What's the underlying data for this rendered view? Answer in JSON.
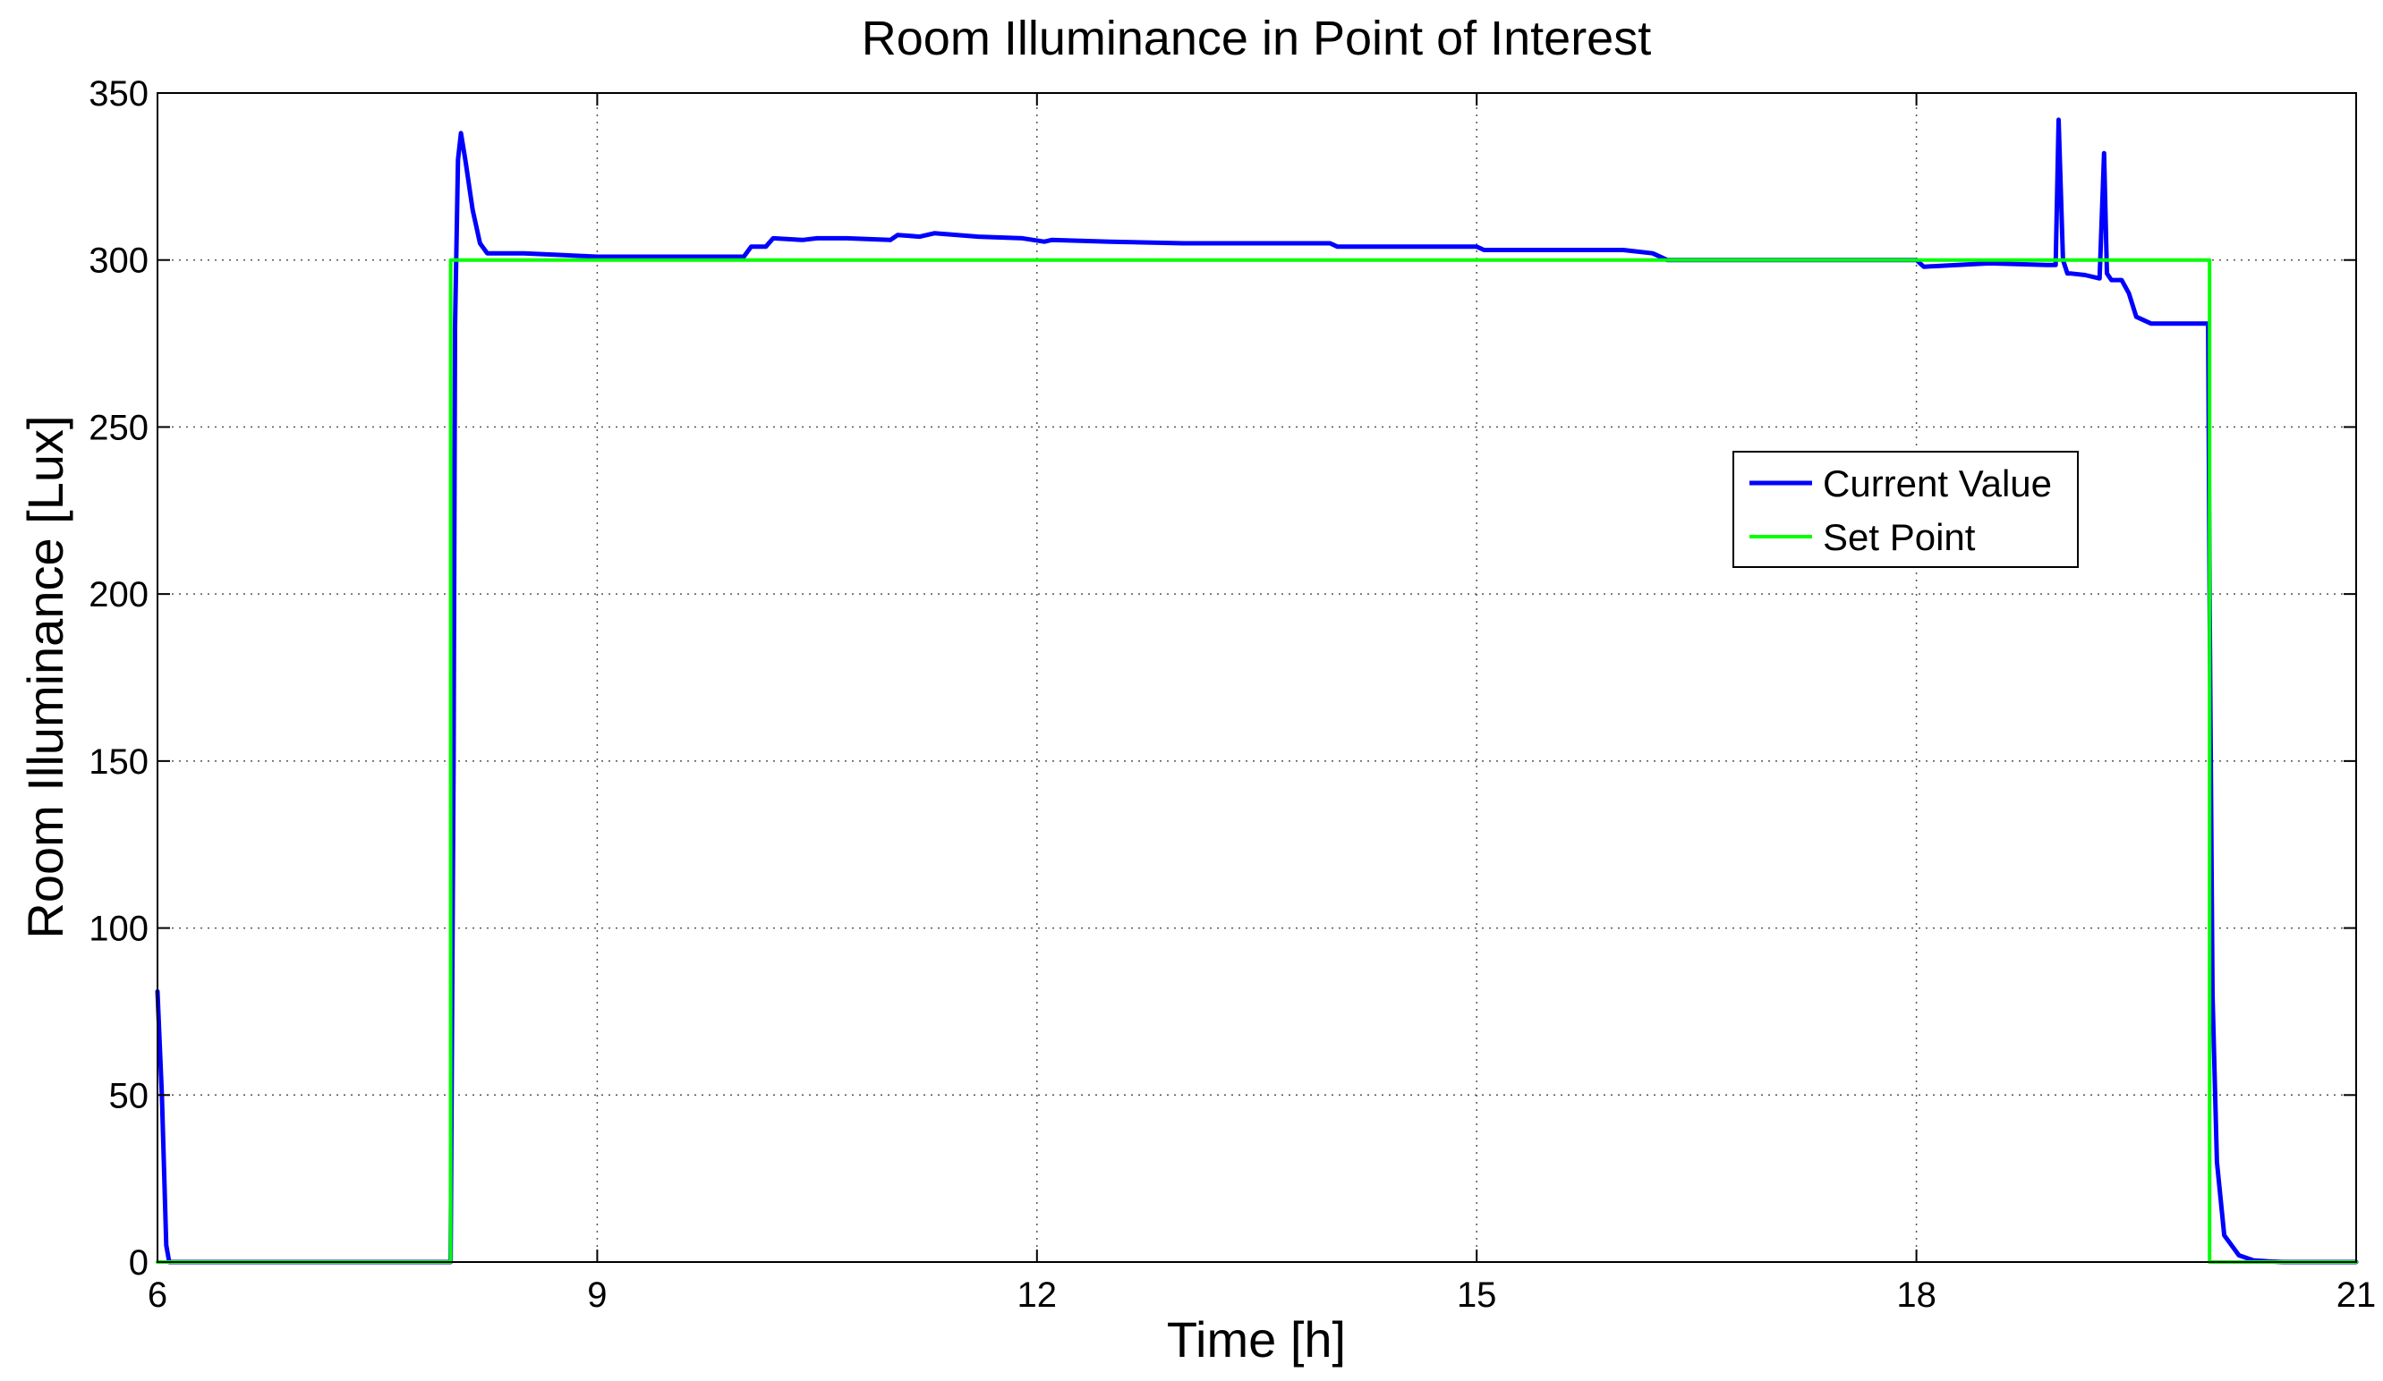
{
  "chart_data": {
    "type": "line",
    "title": "Room Illuminance in Point of Interest",
    "xlabel": "Time [h]",
    "ylabel": "Room Illuminance [Lux]",
    "xlim": [
      6,
      21
    ],
    "ylim": [
      0,
      350
    ],
    "xticks": [
      6,
      9,
      12,
      15,
      18,
      21
    ],
    "yticks": [
      0,
      50,
      100,
      150,
      200,
      250,
      300,
      350
    ],
    "grid": true,
    "grid_style": "dotted",
    "legend_position": "center-right",
    "series": [
      {
        "name": "Current Value",
        "color": "#0000ff",
        "x": [
          6.0,
          6.03,
          6.06,
          6.08,
          7.9,
          8.0,
          8.02,
          8.03,
          8.05,
          8.07,
          8.1,
          8.15,
          8.2,
          8.25,
          8.3,
          8.5,
          9.0,
          10.0,
          10.05,
          10.15,
          10.2,
          10.4,
          10.5,
          10.7,
          11.0,
          11.05,
          11.2,
          11.3,
          11.6,
          11.9,
          12.05,
          12.1,
          12.5,
          13.0,
          14.0,
          14.05,
          15.0,
          15.05,
          16.0,
          16.2,
          16.3,
          16.8,
          17.3,
          17.8,
          18.0,
          18.05,
          18.5,
          18.9,
          18.95,
          18.97,
          19.0,
          19.03,
          19.05,
          19.15,
          19.25,
          19.28,
          19.3,
          19.33,
          19.4,
          19.45,
          19.5,
          19.6,
          19.8,
          19.99,
          20.0,
          20.02,
          20.05,
          20.1,
          20.2,
          20.3,
          20.4,
          20.5,
          21.0
        ],
        "values": [
          81,
          50,
          5,
          0,
          0,
          0,
          150,
          280,
          330,
          338,
          330,
          315,
          305,
          302,
          302,
          302,
          301,
          301,
          304,
          304,
          306.5,
          306,
          306.5,
          306.5,
          306,
          307.5,
          307,
          308,
          307,
          306.5,
          305.5,
          306,
          305.5,
          305,
          305,
          304,
          304,
          303,
          303,
          302,
          300,
          300,
          300,
          300,
          300,
          298,
          299,
          298.5,
          298.5,
          342,
          300,
          296,
          296,
          295.5,
          294.5,
          332,
          296,
          294,
          294,
          290,
          283,
          281,
          281,
          281,
          200,
          80,
          30,
          8,
          2,
          0.5,
          0.2,
          0,
          0
        ]
      },
      {
        "name": "Set Point",
        "color": "#00ff00",
        "x": [
          6.0,
          8.0,
          8.0,
          20.0,
          20.0,
          21.0
        ],
        "values": [
          0,
          0,
          300,
          300,
          0,
          0
        ]
      }
    ]
  }
}
